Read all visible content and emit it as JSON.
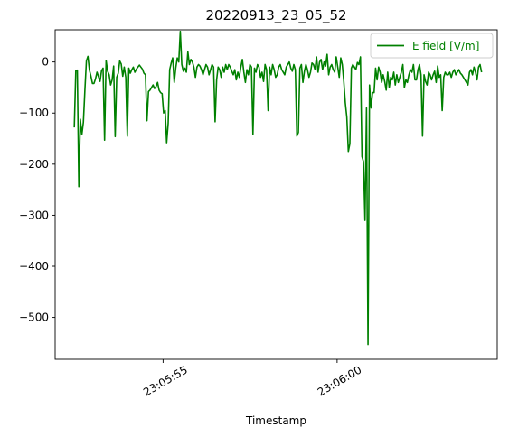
{
  "chart_data": {
    "type": "line",
    "title": "20220913_23_05_52",
    "xlabel": "Timestamp",
    "ylabel": "",
    "legend_position": "top-right",
    "grid": false,
    "x_ticks": [
      {
        "label": "23:05:55",
        "time_s": 55.0
      },
      {
        "label": "23:06:00",
        "time_s": 60.0
      }
    ],
    "xlim_s": [
      51.9,
      64.6
    ],
    "ylim": [
      -582,
      63
    ],
    "y_ticks": [
      -500,
      -400,
      -300,
      -200,
      -100,
      0
    ],
    "series": [
      {
        "name": "E field [V/m]",
        "color": "#008000",
        "t_start_s": 52.45,
        "t_end_s": 64.15,
        "values": [
          -128,
          -17,
          -16,
          -244,
          -112,
          -142,
          -118,
          -55,
          2,
          11,
          -16,
          -28,
          -42,
          -42,
          -33,
          -20,
          -29,
          -38,
          -17,
          -12,
          -153,
          3,
          -18,
          -25,
          -45,
          -35,
          -8,
          -146,
          -30,
          -22,
          2,
          -4,
          -28,
          -10,
          -30,
          -145,
          -12,
          -22,
          -15,
          -10,
          -20,
          -14,
          -10,
          -6,
          -10,
          -14,
          -22,
          -25,
          -115,
          -58,
          -55,
          -50,
          -45,
          -52,
          -48,
          -40,
          -55,
          -60,
          -62,
          -100,
          -95,
          -158,
          -120,
          -15,
          -2,
          8,
          -40,
          -12,
          8,
          0,
          60,
          -5,
          -18,
          -12,
          -20,
          20,
          -5,
          5,
          0,
          -10,
          -30,
          -10,
          -5,
          -8,
          -15,
          -25,
          -15,
          -5,
          -10,
          -25,
          -15,
          -5,
          -10,
          -117,
          -35,
          -10,
          -15,
          -30,
          -10,
          -20,
          -5,
          -15,
          -5,
          -10,
          -18,
          -25,
          -15,
          -35,
          -20,
          -30,
          -10,
          5,
          -20,
          -40,
          -15,
          -25,
          -5,
          -10,
          -142,
          -12,
          -20,
          -5,
          -10,
          -30,
          -20,
          -38,
          -5,
          -15,
          -95,
          -10,
          -25,
          -5,
          -15,
          -30,
          -25,
          -10,
          -5,
          -15,
          -20,
          -25,
          -10,
          -5,
          0,
          -12,
          -18,
          -5,
          -15,
          -145,
          -138,
          -12,
          -5,
          -40,
          -18,
          -5,
          -15,
          -30,
          -20,
          -2,
          -5,
          -15,
          10,
          -20,
          0,
          5,
          -15,
          0,
          -8,
          15,
          -25,
          -10,
          -5,
          -15,
          -20,
          10,
          -10,
          -30,
          8,
          -5,
          -38,
          -80,
          -108,
          -175,
          -160,
          -12,
          -5,
          -10,
          -15,
          -1,
          -5,
          10,
          -185,
          -195,
          -310,
          -90,
          -553,
          -45,
          -90,
          -60,
          -60,
          -12,
          -35,
          -10,
          -20,
          -40,
          -25,
          -38,
          -55,
          -20,
          -50,
          -30,
          -35,
          -20,
          -45,
          -25,
          -40,
          -30,
          -20,
          -5,
          -50,
          -35,
          -40,
          -25,
          -15,
          -20,
          -5,
          -35,
          -35,
          -15,
          -5,
          -25,
          -145,
          -25,
          -38,
          -45,
          -20,
          -25,
          -35,
          -25,
          -18,
          -40,
          -8,
          -30,
          -25,
          -95,
          -30,
          -20,
          -25,
          -25,
          -20,
          -30,
          -20,
          -15,
          -25,
          -20,
          -15,
          -22,
          -25,
          -30,
          -35,
          -40,
          -45,
          -20,
          -15,
          -25,
          -10,
          -20,
          -35,
          -10,
          -5,
          -20
        ]
      }
    ]
  }
}
